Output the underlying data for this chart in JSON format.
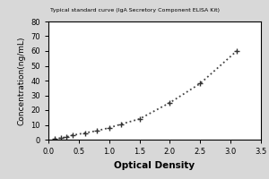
{
  "title": "Typical standard curve (IgA Secretory Component ELISA Kit)",
  "xlabel": "Optical Density",
  "ylabel": "Concentration(ng/mL)",
  "xlim": [
    0,
    3.5
  ],
  "ylim": [
    0,
    80
  ],
  "xticks": [
    0,
    0.5,
    1.0,
    1.5,
    2.0,
    2.5,
    3.0,
    3.5
  ],
  "yticks": [
    0,
    10,
    20,
    30,
    40,
    50,
    60,
    70,
    80
  ],
  "x_data": [
    0.1,
    0.2,
    0.3,
    0.4,
    0.6,
    0.8,
    1.0,
    1.2,
    1.5,
    2.0,
    2.5,
    3.1
  ],
  "y_data": [
    0.5,
    1.0,
    1.8,
    3.0,
    4.5,
    6.0,
    8.0,
    10.5,
    14.0,
    25.0,
    38.0,
    60.0
  ],
  "line_color": "#444444",
  "marker": "+",
  "marker_size": 5,
  "marker_color": "#333333",
  "linestyle": "dotted",
  "linewidth": 1.3,
  "background_color": "#ffffff",
  "outer_background": "#d8d8d8",
  "border_color": "#000000",
  "xlabel_fontsize": 7.5,
  "ylabel_fontsize": 6.5,
  "tick_fontsize": 6.0
}
